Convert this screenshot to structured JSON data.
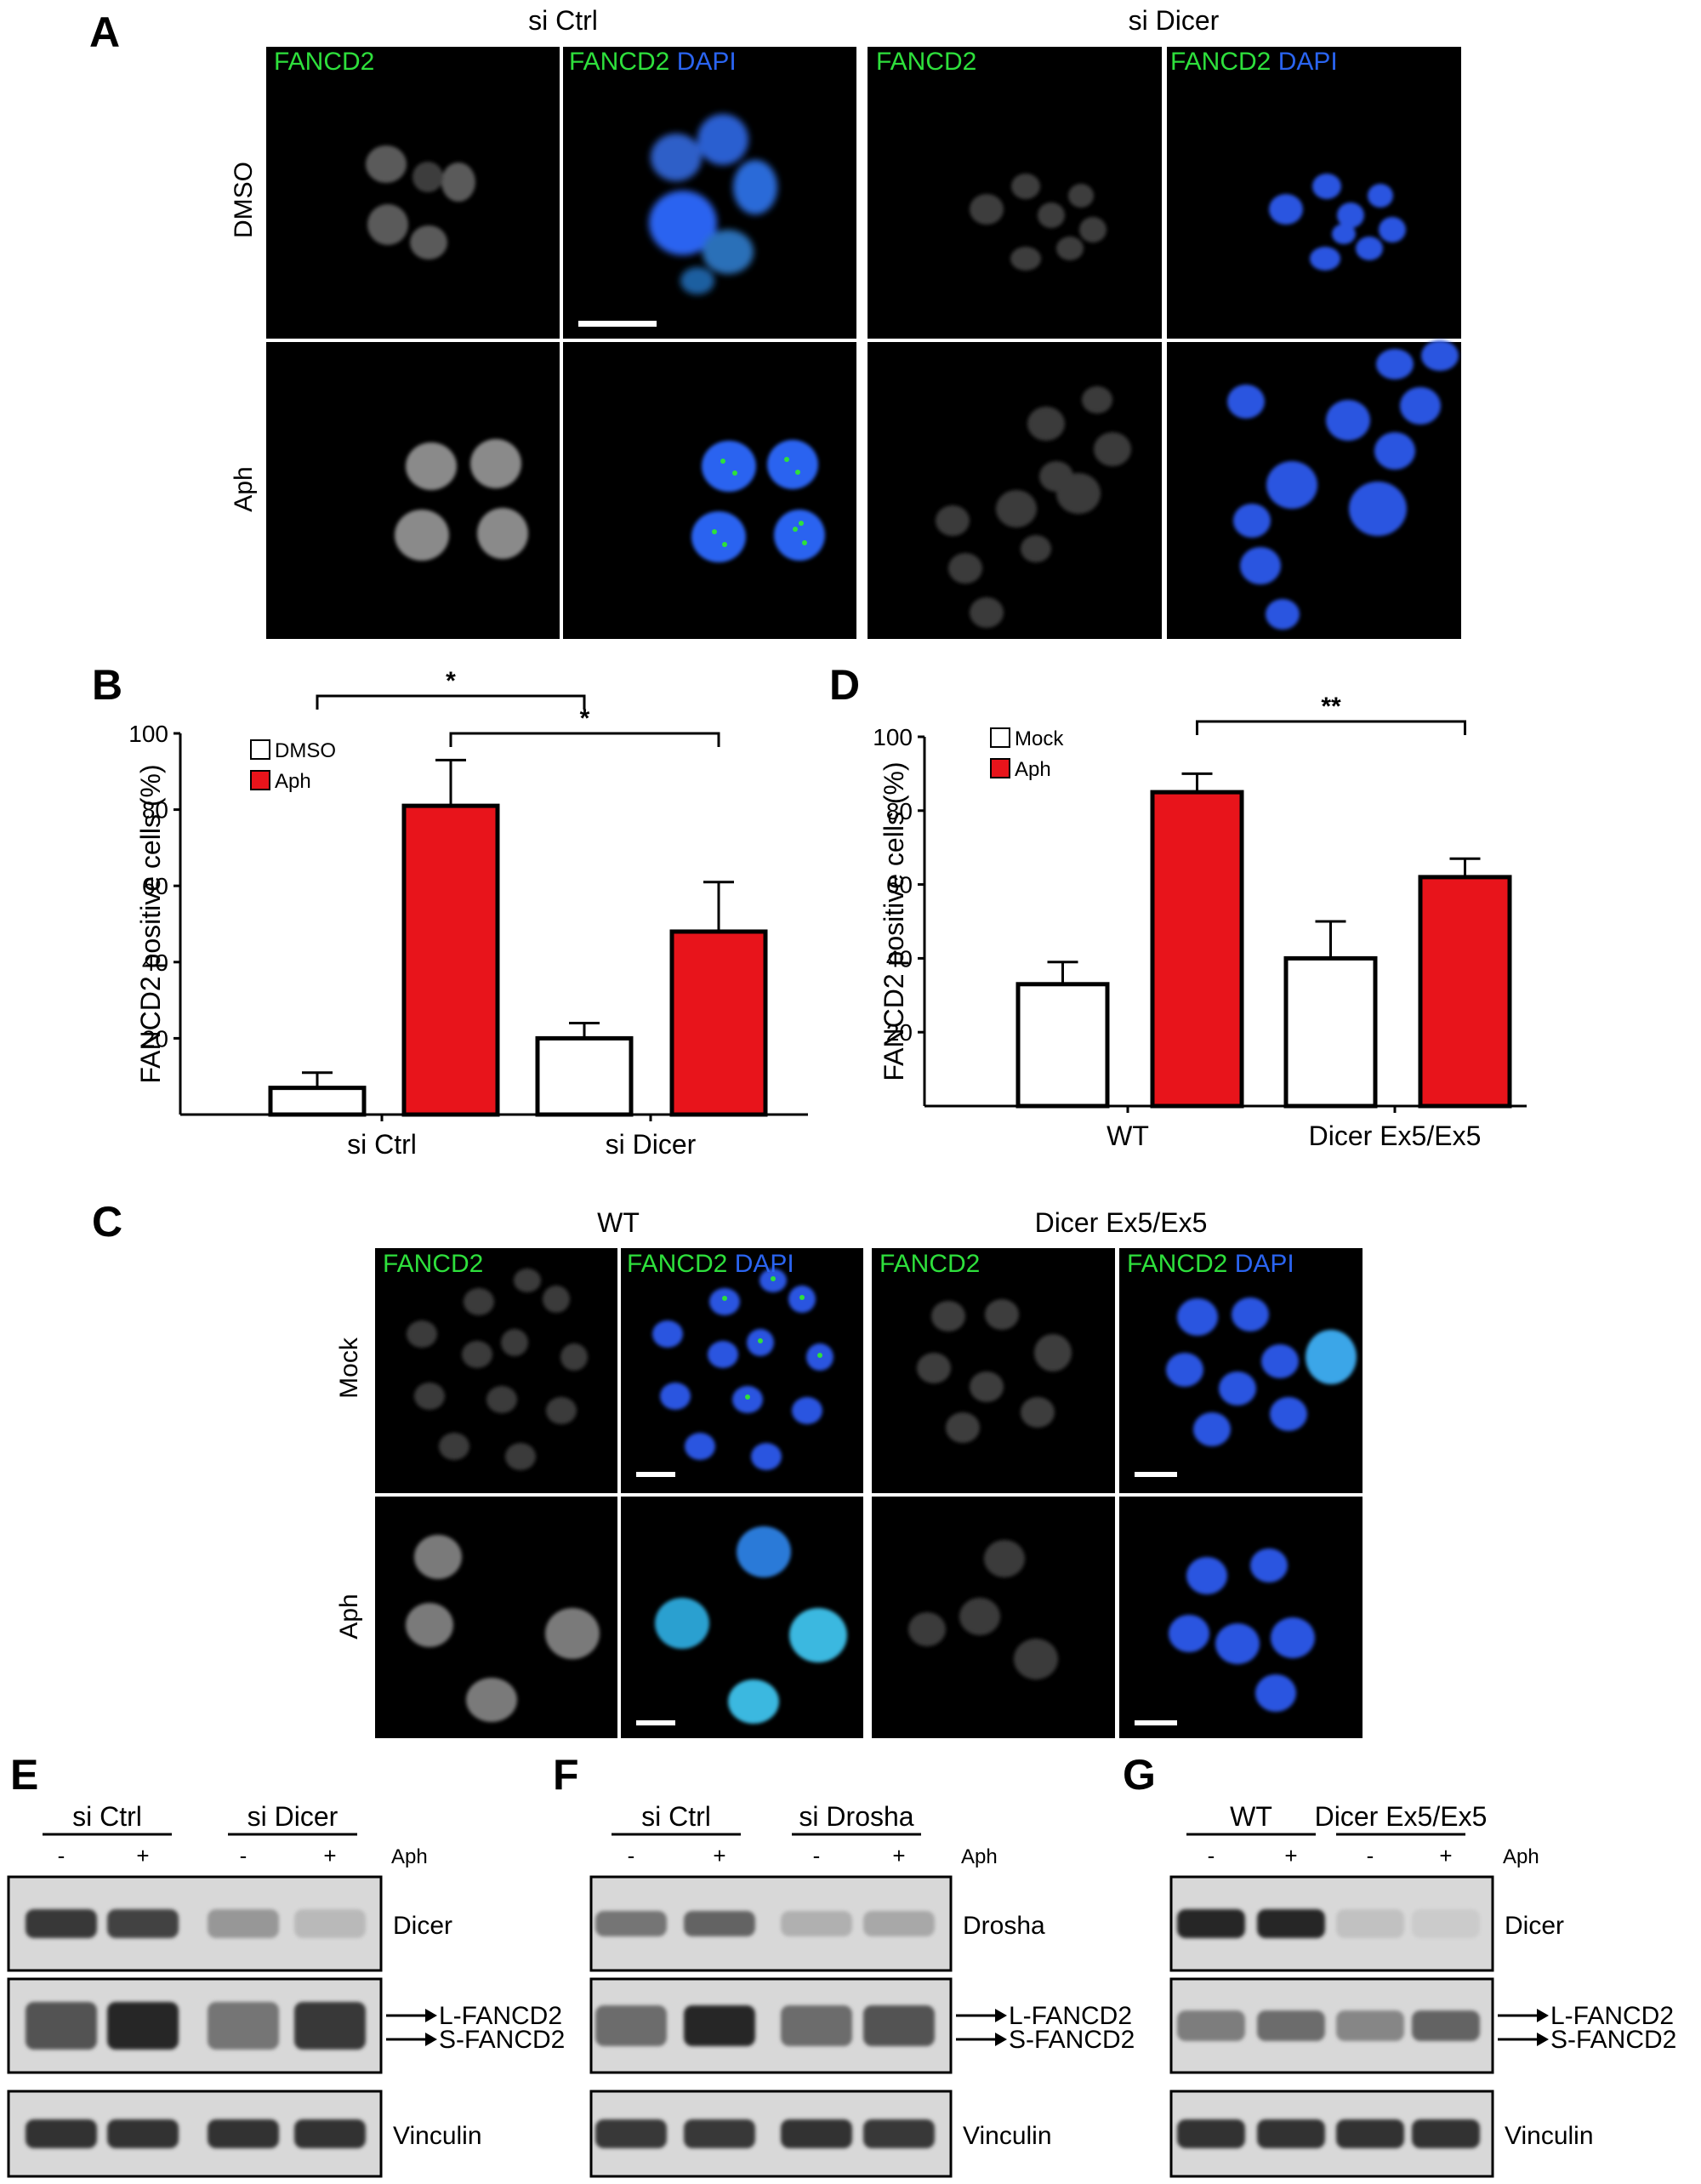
{
  "panel_letters": {
    "A": "A",
    "B": "B",
    "C": "C",
    "D": "D",
    "E": "E",
    "F": "F",
    "G": "G"
  },
  "panel_a": {
    "group_titles": [
      "si Ctrl",
      "si Dicer"
    ],
    "row_labels": [
      "DMSO",
      "Aph"
    ],
    "channel_fancd2": "FANCD2",
    "channel_dapi": "DAPI"
  },
  "panel_c": {
    "group_titles": [
      "WT",
      "Dicer Ex5/Ex5"
    ],
    "row_labels": [
      "Mock",
      "Aph"
    ],
    "channel_fancd2": "FANCD2",
    "channel_dapi": "DAPI"
  },
  "colors": {
    "aph_bar": "#e8141b",
    "fancd2_green": "#2ee03c",
    "dapi_blue": "#2a64f0",
    "micrograph_bg": "#000000"
  },
  "chart_data": [
    {
      "panel": "B",
      "type": "bar",
      "ylabel": "FANCD2 positive cells  (%)",
      "ylim": [
        0,
        100
      ],
      "yticks": [
        "20",
        "40",
        "60",
        "80",
        "100"
      ],
      "categories": [
        "si Ctrl",
        "si Dicer"
      ],
      "series": [
        {
          "name": "DMSO",
          "values": [
            7,
            20
          ],
          "errors": [
            4,
            4
          ]
        },
        {
          "name": "Aph",
          "values": [
            81,
            48
          ],
          "errors": [
            12,
            13
          ]
        }
      ],
      "legend": "top-left",
      "significance": [
        "*",
        "*"
      ]
    },
    {
      "panel": "D",
      "type": "bar",
      "ylabel": "FANCD2 positive cells (%)",
      "ylim": [
        0,
        100
      ],
      "yticks": [
        "20",
        "40",
        "60",
        "80",
        "100"
      ],
      "categories": [
        "WT",
        "Dicer Ex5/Ex5"
      ],
      "series": [
        {
          "name": "Mock",
          "values": [
            33,
            40
          ],
          "errors": [
            6,
            10
          ]
        },
        {
          "name": "Aph",
          "values": [
            85,
            62
          ],
          "errors": [
            5,
            5
          ]
        }
      ],
      "legend": "top-left",
      "significance": [
        "**"
      ]
    }
  ],
  "blots": {
    "E": {
      "groups": [
        "si Ctrl",
        "si Dicer"
      ],
      "lanes": [
        "-",
        "+",
        "-",
        "+"
      ],
      "treatment": "Aph",
      "rows": [
        "Dicer",
        "",
        "Vinculin"
      ],
      "fancd2_labels": [
        "L-FANCD2",
        "S-FANCD2"
      ]
    },
    "F": {
      "groups": [
        "si Ctrl",
        "si Drosha"
      ],
      "lanes": [
        "-",
        "+",
        "-",
        "+"
      ],
      "treatment": "Aph",
      "rows": [
        "Drosha",
        "",
        "Vinculin"
      ],
      "fancd2_labels": [
        "L-FANCD2",
        "S-FANCD2"
      ]
    },
    "G": {
      "groups": [
        "WT",
        "Dicer Ex5/Ex5"
      ],
      "lanes": [
        "-",
        "+",
        "-",
        "+"
      ],
      "treatment": "Aph",
      "rows": [
        "Dicer",
        "",
        "Vinculin"
      ],
      "fancd2_labels": [
        "L-FANCD2",
        "S-FANCD2"
      ]
    }
  }
}
